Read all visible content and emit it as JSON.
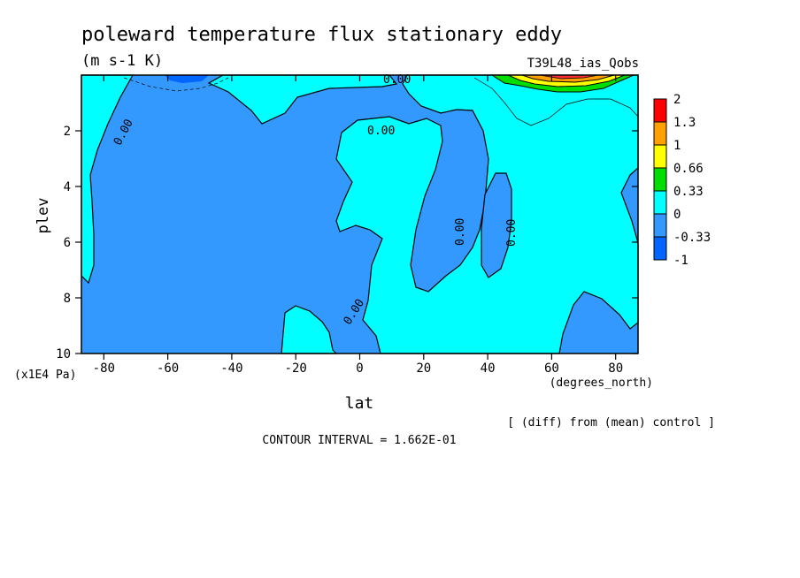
{
  "chart_data": {
    "type": "contour",
    "title": "poleward temperature flux stationary eddy",
    "units": "(m s-1 K)",
    "run_label": "T39L48_ias_Qobs",
    "xlabel": "lat",
    "x_units": "(degrees_north)",
    "ylabel": "plev",
    "y_units": "(x1E4 Pa)",
    "xlim": [
      -87,
      87
    ],
    "ylim": [
      10,
      0
    ],
    "x_ticks": [
      -80,
      -60,
      -40,
      -20,
      0,
      20,
      40,
      60,
      80
    ],
    "y_ticks": [
      2,
      4,
      6,
      8,
      10
    ],
    "contour_interval_label": "CONTOUR INTERVAL = 1.662E-01",
    "diff_label": "[ (diff) from (mean) control ]",
    "contour_labels": [
      "0.00",
      "0.00",
      "0.00",
      "0.00",
      "0.00",
      "0.00"
    ],
    "colorbar": {
      "levels": [
        "2",
        "1.3",
        "1",
        "0.66",
        "0.33",
        "0",
        "-0.33",
        "-1"
      ],
      "colors": [
        "#ff0000",
        "#ff9f00",
        "#ffff00",
        "#00dd00",
        "#00ffff",
        "#3399ff",
        "#0066ff"
      ]
    },
    "colors": {
      "negative": "#3399ff",
      "positive": "#00ffff"
    }
  }
}
